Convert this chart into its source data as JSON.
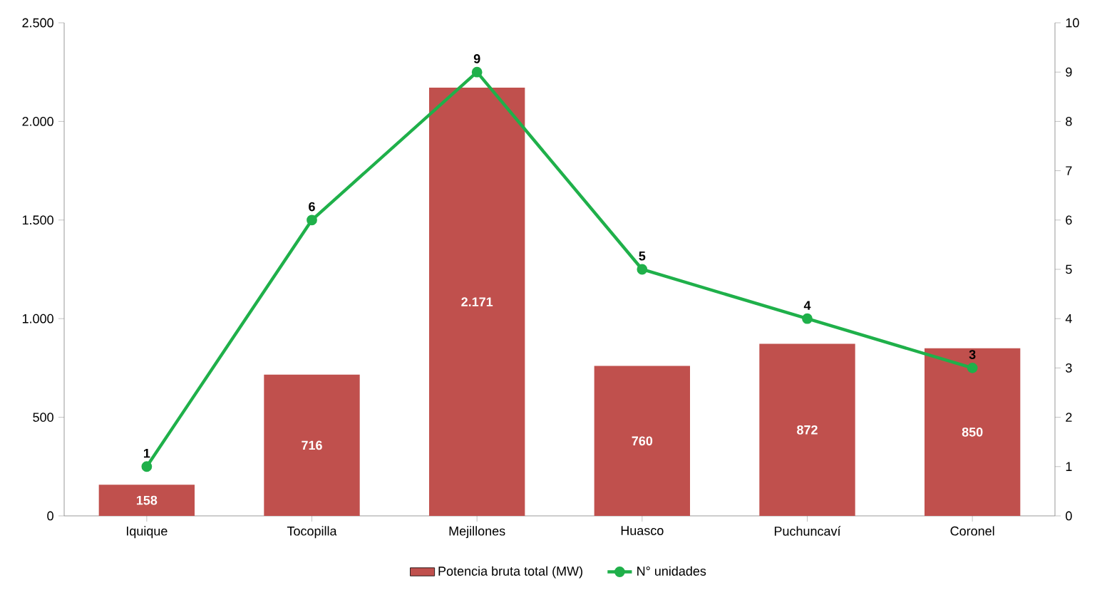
{
  "chart_data": {
    "type": "bar",
    "categories": [
      "Iquique",
      "Tocopilla",
      "Mejillones",
      "Huasco",
      "Puchuncaví",
      "Coronel"
    ],
    "series": [
      {
        "name": "Potencia bruta total (MW)",
        "color": "#c0504d",
        "values": [
          158,
          716,
          2171,
          760,
          872,
          850
        ],
        "value_labels": [
          "158",
          "716",
          "2.171",
          "760",
          "872",
          "850"
        ]
      },
      {
        "name": "N° unidades",
        "type": "line",
        "axis": "y2",
        "color": "#1fb04a",
        "values": [
          1,
          6,
          9,
          5,
          4,
          3
        ],
        "value_labels": [
          "1",
          "6",
          "9",
          "5",
          "4",
          "3"
        ]
      }
    ],
    "ylim": [
      0,
      2500
    ],
    "yticks": [
      0,
      {
        "value": 500,
        "label": "500"
      },
      {
        "value": 1000,
        "label": "1.000"
      },
      {
        "value": 1500,
        "label": "1.500"
      },
      {
        "value": 2000,
        "label": "2.000"
      },
      {
        "value": 2500,
        "label": "2.500"
      }
    ],
    "y2lim": [
      0,
      10
    ],
    "y2ticks": [
      0,
      1,
      2,
      3,
      4,
      5,
      6,
      7,
      8,
      9,
      10
    ],
    "marker": "circle",
    "line_style": "solid",
    "legend": "bottom",
    "grid": false
  }
}
